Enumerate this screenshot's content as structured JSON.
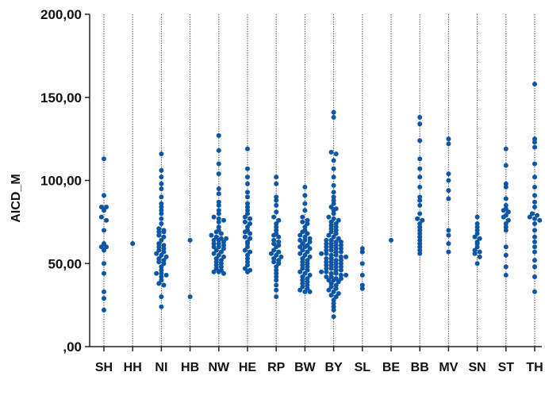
{
  "chart_data": {
    "type": "scatter",
    "subtype": "dot-strip",
    "title": "",
    "xlabel": "",
    "ylabel": "AICD_M",
    "ylim": [
      0,
      200
    ],
    "yticks": [
      "200,00",
      "150,00",
      "100,00",
      "50,00",
      ",00"
    ],
    "grid": "vertical dotted lines per category",
    "point_color": "#0b56a6",
    "categories": [
      "SH",
      "HH",
      "NI",
      "HB",
      "NW",
      "HE",
      "RP",
      "BW",
      "BY",
      "SL",
      "BE",
      "BB",
      "MV",
      "SN",
      "ST",
      "TH"
    ],
    "values": {
      "SH": [
        113,
        91,
        84,
        84,
        82,
        78,
        76,
        70,
        62,
        60,
        60,
        58,
        50,
        44,
        33,
        29,
        22
      ],
      "HH": [
        62
      ],
      "NI": [
        116,
        106,
        102,
        98,
        95,
        90,
        86,
        84,
        82,
        80,
        77,
        74,
        71,
        70,
        69,
        69,
        67,
        66,
        64,
        62,
        61,
        60,
        59,
        58,
        57,
        56,
        55,
        54,
        53,
        52,
        51,
        50,
        48,
        46,
        44,
        44,
        43,
        42,
        40,
        38,
        37,
        30,
        24
      ],
      "HB": [
        64,
        30
      ],
      "NW": [
        127,
        118,
        110,
        104,
        95,
        92,
        87,
        85,
        82,
        80,
        78,
        77,
        76,
        75,
        72,
        70,
        69,
        68,
        67,
        66,
        65,
        65,
        64,
        64,
        63,
        62,
        62,
        61,
        60,
        60,
        59,
        58,
        57,
        56,
        55,
        54,
        53,
        52,
        51,
        50,
        49,
        48,
        47,
        46,
        45,
        45,
        44
      ],
      "HE": [
        119,
        107,
        102,
        98,
        93,
        90,
        86,
        84,
        82,
        80,
        78,
        77,
        75,
        74,
        72,
        70,
        69,
        68,
        66,
        65,
        63,
        62,
        60,
        58,
        57,
        55,
        53,
        51,
        49,
        47,
        46,
        45
      ],
      "RP": [
        102,
        98,
        90,
        88,
        85,
        81,
        78,
        76,
        74,
        72,
        70,
        68,
        67,
        66,
        64,
        63,
        62,
        61,
        60,
        58,
        57,
        56,
        55,
        54,
        53,
        52,
        51,
        50,
        48,
        46,
        44,
        42,
        40,
        37,
        34,
        30
      ],
      "BW": [
        96,
        91,
        86,
        82,
        78,
        76,
        75,
        74,
        72,
        70,
        69,
        68,
        67,
        66,
        65,
        64,
        64,
        63,
        62,
        61,
        60,
        60,
        59,
        58,
        57,
        56,
        55,
        54,
        53,
        52,
        51,
        50,
        49,
        48,
        47,
        46,
        45,
        44,
        43,
        42,
        41,
        40,
        39,
        38,
        37,
        36,
        35,
        34,
        33,
        33
      ],
      "BY": [
        141,
        138,
        117,
        116,
        112,
        107,
        102,
        97,
        93,
        90,
        88,
        86,
        84,
        83,
        82,
        80,
        78,
        77,
        76,
        75,
        74,
        73,
        72,
        71,
        70,
        69,
        68,
        67,
        66,
        65,
        64,
        64,
        63,
        63,
        62,
        62,
        61,
        61,
        60,
        60,
        59,
        59,
        58,
        58,
        57,
        57,
        56,
        56,
        55,
        55,
        54,
        54,
        53,
        53,
        52,
        52,
        51,
        51,
        50,
        50,
        49,
        49,
        48,
        48,
        47,
        47,
        46,
        46,
        45,
        45,
        44,
        44,
        43,
        43,
        42,
        42,
        41,
        41,
        40,
        40,
        39,
        38,
        37,
        36,
        35,
        34,
        33,
        32,
        31,
        30,
        28,
        26,
        24,
        22,
        18
      ],
      "SL": [
        59,
        57,
        50,
        43,
        37,
        35
      ],
      "BE": [
        64
      ],
      "BB": [
        138,
        134,
        124,
        113,
        107,
        102,
        96,
        90,
        88,
        85,
        80,
        77,
        76,
        74,
        72,
        70,
        68,
        66,
        64,
        62,
        60,
        58,
        56
      ],
      "MV": [
        125,
        122,
        104,
        100,
        94,
        89,
        70,
        67,
        62,
        57
      ],
      "SN": [
        78,
        74,
        72,
        70,
        68,
        66,
        65,
        63,
        62,
        60,
        58,
        57,
        56,
        54,
        50
      ],
      "ST": [
        119,
        109,
        98,
        96,
        89,
        85,
        83,
        82,
        81,
        79,
        78,
        76,
        74,
        72,
        70,
        60,
        55,
        48,
        43
      ],
      "TH": [
        158,
        125,
        123,
        120,
        110,
        102,
        96,
        91,
        87,
        84,
        80,
        79,
        78,
        77,
        76,
        74,
        70,
        66,
        63,
        60,
        57,
        52,
        48,
        42,
        33
      ]
    }
  }
}
